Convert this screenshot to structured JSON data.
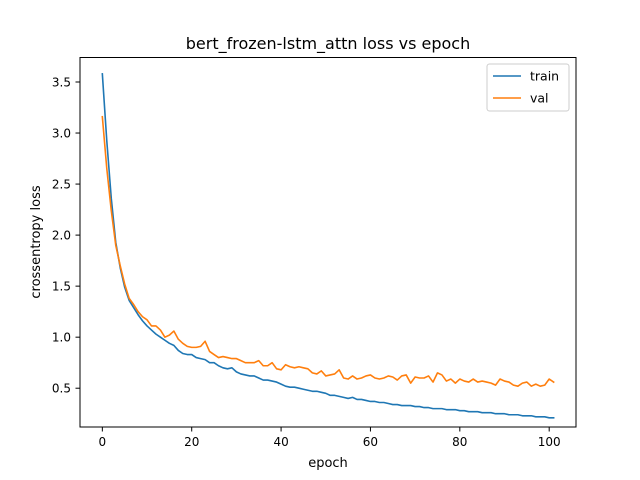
{
  "chart_data": {
    "type": "line",
    "title": "bert_frozen-lstm_attn loss vs epoch",
    "xlabel": "epoch",
    "ylabel": "crossentropy loss",
    "xlim": [
      -5,
      106
    ],
    "ylim": [
      0.12,
      3.74
    ],
    "x_ticks": [
      0,
      20,
      40,
      60,
      80,
      100
    ],
    "y_ticks": [
      0.5,
      1.0,
      1.5,
      2.0,
      2.5,
      3.0,
      3.5
    ],
    "x_tick_labels": [
      "0",
      "20",
      "40",
      "60",
      "80",
      "100"
    ],
    "y_tick_labels": [
      "0.5",
      "1.0",
      "1.5",
      "2.0",
      "2.5",
      "3.0",
      "3.5"
    ],
    "grid": false,
    "legend": "top-right",
    "series": [
      {
        "name": "train",
        "color": "#1f77b4",
        "values": [
          3.58,
          2.92,
          2.36,
          1.93,
          1.68,
          1.49,
          1.36,
          1.29,
          1.22,
          1.16,
          1.11,
          1.07,
          1.03,
          1.0,
          0.97,
          0.94,
          0.92,
          0.87,
          0.84,
          0.83,
          0.83,
          0.8,
          0.79,
          0.78,
          0.75,
          0.75,
          0.72,
          0.7,
          0.69,
          0.7,
          0.66,
          0.64,
          0.63,
          0.62,
          0.62,
          0.6,
          0.58,
          0.58,
          0.57,
          0.56,
          0.54,
          0.52,
          0.51,
          0.51,
          0.5,
          0.49,
          0.48,
          0.47,
          0.47,
          0.46,
          0.45,
          0.43,
          0.43,
          0.42,
          0.41,
          0.4,
          0.41,
          0.39,
          0.39,
          0.38,
          0.37,
          0.37,
          0.36,
          0.36,
          0.35,
          0.34,
          0.34,
          0.33,
          0.33,
          0.33,
          0.32,
          0.32,
          0.31,
          0.31,
          0.3,
          0.3,
          0.3,
          0.29,
          0.29,
          0.29,
          0.28,
          0.28,
          0.27,
          0.27,
          0.27,
          0.26,
          0.26,
          0.26,
          0.25,
          0.25,
          0.25,
          0.24,
          0.24,
          0.24,
          0.23,
          0.23,
          0.23,
          0.22,
          0.22,
          0.22,
          0.21,
          0.21
        ]
      },
      {
        "name": "val",
        "color": "#ff7f0e",
        "values": [
          3.16,
          2.65,
          2.24,
          1.9,
          1.7,
          1.52,
          1.38,
          1.32,
          1.25,
          1.2,
          1.17,
          1.11,
          1.11,
          1.07,
          1.0,
          1.02,
          1.06,
          0.98,
          0.94,
          0.91,
          0.9,
          0.9,
          0.91,
          0.96,
          0.86,
          0.83,
          0.8,
          0.81,
          0.8,
          0.79,
          0.79,
          0.77,
          0.75,
          0.75,
          0.75,
          0.77,
          0.72,
          0.72,
          0.75,
          0.69,
          0.68,
          0.73,
          0.71,
          0.7,
          0.71,
          0.7,
          0.69,
          0.65,
          0.64,
          0.67,
          0.62,
          0.63,
          0.64,
          0.68,
          0.6,
          0.59,
          0.62,
          0.59,
          0.6,
          0.62,
          0.63,
          0.6,
          0.59,
          0.6,
          0.62,
          0.61,
          0.58,
          0.62,
          0.63,
          0.55,
          0.61,
          0.6,
          0.6,
          0.62,
          0.56,
          0.65,
          0.63,
          0.57,
          0.59,
          0.55,
          0.59,
          0.57,
          0.56,
          0.59,
          0.56,
          0.57,
          0.56,
          0.55,
          0.53,
          0.59,
          0.57,
          0.56,
          0.53,
          0.52,
          0.55,
          0.56,
          0.52,
          0.54,
          0.52,
          0.53,
          0.59,
          0.56
        ]
      }
    ]
  }
}
